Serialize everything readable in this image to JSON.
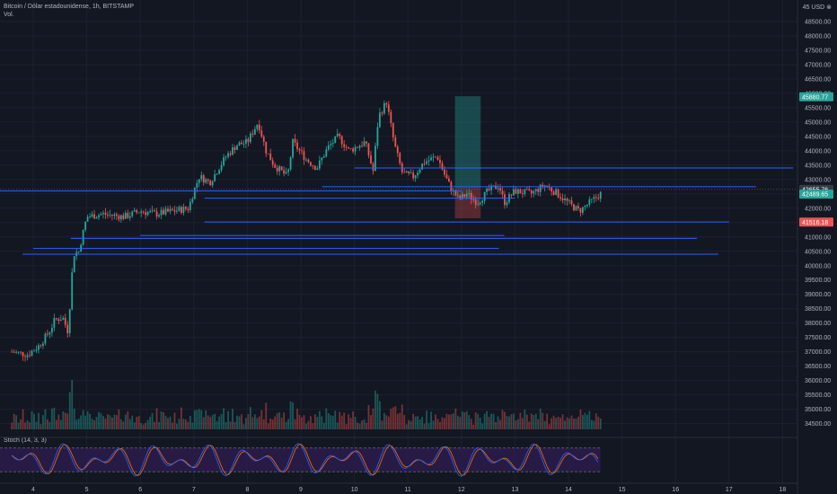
{
  "header": {
    "symbol_line": "Bitcoin / Dólar estadounidense, 1h, BITSTAMP",
    "volume_label": "Vol."
  },
  "axis": {
    "currency": "45 USD ⊗"
  },
  "indicator": {
    "label": "Stoch (14, 3, 3)",
    "levels": [
      "80.00",
      "40.00",
      "0.00"
    ]
  },
  "colors": {
    "background": "#131722",
    "bull": "#26a69a",
    "bear": "#ef5350",
    "line": "#2962ff",
    "text": "#b2b5be",
    "stoch_band": "#2a1c4a",
    "stoch_k": "#2962ff",
    "stoch_d": "#ff6d00"
  },
  "chart_data": {
    "type": "candlestick",
    "y_ticks": [
      "48500.00",
      "48000.00",
      "47500.00",
      "47000.00",
      "46500.00",
      "46000.00",
      "45500.00",
      "45000.00",
      "44500.00",
      "44000.00",
      "43500.00",
      "43000.00",
      "42500.00",
      "42000.00",
      "41500.00",
      "41000.00",
      "40500.00",
      "40000.00",
      "39500.00",
      "39000.00",
      "38500.00",
      "38000.00",
      "37500.00",
      "37000.00",
      "36500.00",
      "36000.00",
      "35500.00",
      "35000.00",
      "34500.00"
    ],
    "x_ticks": [
      "4",
      "5",
      "6",
      "7",
      "8",
      "9",
      "10",
      "11",
      "12",
      "13",
      "14",
      "15",
      "16",
      "17",
      "18"
    ],
    "ylim": [
      34300,
      49000
    ],
    "price_path": [
      [
        3.6,
        37000
      ],
      [
        3.9,
        36900
      ],
      [
        4.1,
        37200
      ],
      [
        4.3,
        37700
      ],
      [
        4.4,
        38100
      ],
      [
        4.55,
        38200
      ],
      [
        4.65,
        37700
      ],
      [
        4.75,
        40400
      ],
      [
        4.85,
        40500
      ],
      [
        5.0,
        41700
      ],
      [
        5.3,
        41800
      ],
      [
        5.7,
        41700
      ],
      [
        6.0,
        41900
      ],
      [
        6.3,
        41800
      ],
      [
        6.6,
        41900
      ],
      [
        6.9,
        42000
      ],
      [
        7.0,
        42600
      ],
      [
        7.1,
        43100
      ],
      [
        7.3,
        42900
      ],
      [
        7.6,
        43800
      ],
      [
        7.8,
        44200
      ],
      [
        8.0,
        44300
      ],
      [
        8.2,
        45000
      ],
      [
        8.35,
        44000
      ],
      [
        8.5,
        43500
      ],
      [
        8.75,
        43100
      ],
      [
        8.85,
        44300
      ],
      [
        9.1,
        43700
      ],
      [
        9.3,
        43400
      ],
      [
        9.5,
        44100
      ],
      [
        9.7,
        44500
      ],
      [
        9.9,
        44000
      ],
      [
        10.2,
        44300
      ],
      [
        10.35,
        43300
      ],
      [
        10.45,
        45200
      ],
      [
        10.6,
        45700
      ],
      [
        10.75,
        44200
      ],
      [
        10.9,
        43200
      ],
      [
        11.1,
        43100
      ],
      [
        11.3,
        43600
      ],
      [
        11.55,
        43800
      ],
      [
        11.7,
        43100
      ],
      [
        11.8,
        42700
      ],
      [
        11.95,
        42300
      ],
      [
        12.1,
        42500
      ],
      [
        12.3,
        42200
      ],
      [
        12.5,
        42600
      ],
      [
        12.7,
        42800
      ],
      [
        12.8,
        42200
      ],
      [
        13.0,
        42600
      ],
      [
        13.3,
        42500
      ],
      [
        13.55,
        42800
      ],
      [
        13.8,
        42500
      ],
      [
        14.05,
        42100
      ],
      [
        14.2,
        41900
      ],
      [
        14.4,
        42200
      ],
      [
        14.6,
        42500
      ]
    ],
    "horizontal_lines": [
      {
        "price": 43400,
        "from": 10.0,
        "to": 18.2
      },
      {
        "price": 42750,
        "from": 9.4,
        "to": 17.5
      },
      {
        "price": 42600,
        "from": 2.5,
        "to": 12.0
      },
      {
        "price": 42350,
        "from": 7.2,
        "to": 13.0
      },
      {
        "price": 41520,
        "from": 7.2,
        "to": 17.0
      },
      {
        "price": 41050,
        "from": 6.0,
        "to": 12.8
      },
      {
        "price": 40950,
        "from": 4.7,
        "to": 16.4
      },
      {
        "price": 40600,
        "from": 4.0,
        "to": 12.7
      },
      {
        "price": 40400,
        "from": 3.8,
        "to": 16.8
      }
    ],
    "position_tool": {
      "from": 11.88,
      "to": 12.36,
      "entry": 42700,
      "target": 45900,
      "stop": 41650
    },
    "price_labels": [
      {
        "price": 45880,
        "text": "45880.77",
        "color": "#26a69a"
      },
      {
        "price": 42655,
        "text": "42655.76",
        "color": "#363a45"
      },
      {
        "price": 42489,
        "text": "42489.65",
        "color": "#26a69a"
      },
      {
        "price": 41516,
        "text": "41516.18",
        "color": "#ef5350"
      }
    ]
  }
}
